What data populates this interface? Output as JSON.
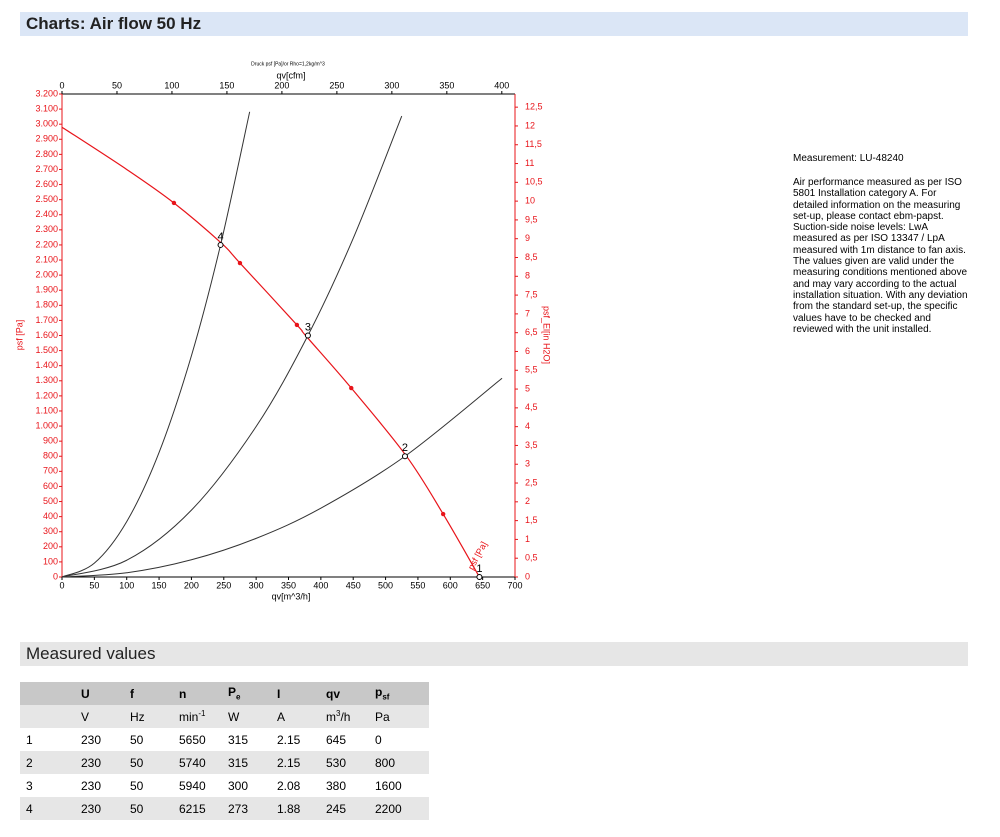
{
  "header": {
    "title": "Charts: Air flow 50 Hz"
  },
  "chart_data": {
    "type": "line",
    "caption": "Druck psf [Pa]/or Rho=1,2kg/m^3",
    "x_label": "qv[m^3/h]",
    "x2_label": "qv[cfm]",
    "y_label": "psf [Pa]",
    "y2_label": "psf_El[in H2O]",
    "xlim": [
      0,
      700
    ],
    "xticks": [
      0,
      50,
      100,
      150,
      200,
      250,
      300,
      350,
      400,
      450,
      500,
      550,
      600,
      650,
      700
    ],
    "x2lim": [
      0,
      412
    ],
    "x2ticks": [
      0,
      50,
      100,
      150,
      200,
      250,
      300,
      350,
      400
    ],
    "ylim": [
      0,
      3200
    ],
    "yticks": [
      0,
      100,
      200,
      300,
      400,
      500,
      600,
      700,
      800,
      900,
      {
        "value": 1000,
        "label": "1.000"
      },
      {
        "value": 1100,
        "label": "1.100"
      },
      {
        "value": 1200,
        "label": "1.200"
      },
      {
        "value": 1300,
        "label": "1.300"
      },
      {
        "value": 1400,
        "label": "1.400"
      },
      {
        "value": 1500,
        "label": "1.500"
      },
      {
        "value": 1600,
        "label": "1.600"
      },
      {
        "value": 1700,
        "label": "1.700"
      },
      {
        "value": 1800,
        "label": "1.800"
      },
      {
        "value": 1900,
        "label": "1.900"
      },
      {
        "value": 2000,
        "label": "2.000"
      },
      {
        "value": 2100,
        "label": "2.100"
      },
      {
        "value": 2200,
        "label": "2.200"
      },
      {
        "value": 2300,
        "label": "2.300"
      },
      {
        "value": 2400,
        "label": "2.400"
      },
      {
        "value": 2500,
        "label": "2.500"
      },
      {
        "value": 2600,
        "label": "2.600"
      },
      {
        "value": 2700,
        "label": "2.700"
      },
      {
        "value": 2800,
        "label": "2.800"
      },
      {
        "value": 2900,
        "label": "2.900"
      },
      {
        "value": 3000,
        "label": "3.000"
      },
      {
        "value": 3100,
        "label": "3.100"
      },
      {
        "value": 3200,
        "label": "3.200"
      }
    ],
    "y2lim": [
      0,
      12.85
    ],
    "y2ticks": [
      0,
      {
        "value": 0.5,
        "label": "0,5"
      },
      1,
      {
        "value": 1.5,
        "label": "1,5"
      },
      2,
      {
        "value": 2.5,
        "label": "2,5"
      },
      3,
      {
        "value": 3.5,
        "label": "3,5"
      },
      4,
      {
        "value": 4.5,
        "label": "4,5"
      },
      5,
      {
        "value": 5.5,
        "label": "5,5"
      },
      6,
      {
        "value": 6.5,
        "label": "6,5"
      },
      7,
      {
        "value": 7.5,
        "label": "7,5"
      },
      8,
      {
        "value": 8.5,
        "label": "8,5"
      },
      9,
      {
        "value": 9.5,
        "label": "9,5"
      },
      10,
      {
        "value": 10.5,
        "label": "10,5"
      },
      11,
      {
        "value": 11.5,
        "label": "11,5"
      },
      12,
      {
        "value": 12.5,
        "label": "12,5"
      }
    ],
    "axis_color": "#e8141a",
    "series": [
      {
        "name": "psf [Pa]",
        "color": "#e8141a",
        "x": [
          0,
          100,
          173,
          246,
          275,
          363,
          377,
          447,
          532,
          589,
          645
        ],
        "values": [
          2980,
          2700,
          2478,
          2213,
          2080,
          1670,
          1597,
          1252,
          802,
          417,
          0
        ]
      },
      {
        "color": "#333333",
        "x": [
          0,
          50,
          100,
          150,
          200,
          245,
          290
        ],
        "values": [
          0,
          92,
          367,
          825,
          1466,
          2200,
          3082
        ]
      },
      {
        "color": "#333333",
        "x": [
          0,
          100,
          200,
          300,
          380,
          450,
          525
        ],
        "values": [
          0,
          111,
          443,
          997,
          1600,
          2244,
          3054
        ]
      },
      {
        "color": "#333333",
        "x": [
          0,
          100,
          200,
          300,
          400,
          530,
          680
        ],
        "values": [
          0,
          28,
          114,
          256,
          456,
          800,
          1317
        ]
      }
    ],
    "markers": {
      "color": "#e8141a",
      "x": [
        173,
        275,
        363,
        447,
        589
      ],
      "values": [
        2478,
        2080,
        1670,
        1252,
        417
      ]
    },
    "operating_points": {
      "labels": [
        "1",
        "2",
        "3",
        "4"
      ],
      "x": [
        645,
        530,
        380,
        245
      ],
      "values": [
        0,
        800,
        1600,
        2200
      ]
    }
  },
  "measurement": "Measurement: LU-48240",
  "note": "Air performance measured as per ISO 5801 Installation category A. For detailed information on the measuring set-up, please contact ebm-papst. Suction-side noise levels: LwA measured as per ISO 13347 / LpA measured with 1m distance to fan axis. The values given are valid under the measuring conditions mentioned above and may vary according to the actual installation situation. With any deviation from the standard set-up, the specific values have to be checked and reviewed with the unit installed.",
  "measured_values": {
    "title": "Measured values",
    "table": {
      "columns": [
        "U",
        "f",
        "n",
        {
          "text": "P",
          "sub": "e"
        },
        "I",
        "qv",
        {
          "text": "p",
          "sub": "sf"
        }
      ],
      "units": [
        "V",
        "Hz",
        {
          "text": "min",
          "sup": "-1"
        },
        "W",
        "A",
        {
          "text": "m",
          "sup": "3",
          "after": "/h"
        },
        "Pa"
      ],
      "rows": [
        [
          "1",
          "230",
          "50",
          "5650",
          "315",
          "2.15",
          "645",
          "0"
        ],
        [
          "2",
          "230",
          "50",
          "5740",
          "315",
          "2.15",
          "530",
          "800"
        ],
        [
          "3",
          "230",
          "50",
          "5940",
          "300",
          "2.08",
          "380",
          "1600"
        ],
        [
          "4",
          "230",
          "50",
          "6215",
          "273",
          "1.88",
          "245",
          "2200"
        ]
      ]
    }
  }
}
